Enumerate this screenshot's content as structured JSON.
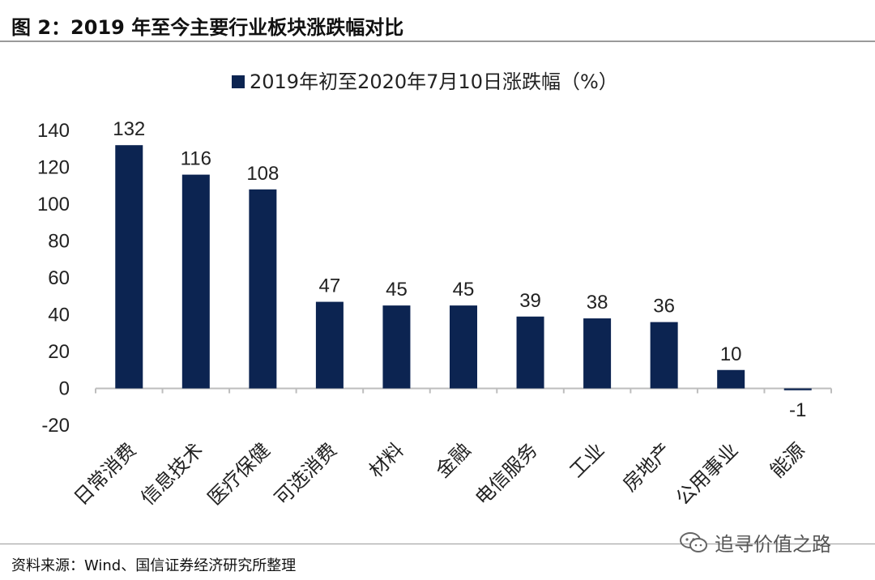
{
  "figure": {
    "title": "图 2：2019 年至今主要行业板块涨跌幅对比",
    "source": "资料来源：Wind、国信证券经济研究所整理",
    "watermark": "追寻价值之路",
    "watermark_icon": "wechat-icon"
  },
  "colors": {
    "bar": "#0c2451",
    "axis": "#bdbdbd",
    "text": "#222222"
  },
  "chart_data": {
    "type": "bar",
    "categories": [
      "日常消费",
      "信息技术",
      "医疗保健",
      "可选消费",
      "材料",
      "金融",
      "电信服务",
      "工业",
      "房地产",
      "公用事业",
      "能源"
    ],
    "series": [
      {
        "name": "2019年初至2020年7月10日涨跌幅（%）",
        "values": [
          132,
          116,
          108,
          47,
          45,
          45,
          39,
          38,
          36,
          10,
          -1
        ]
      }
    ],
    "data_labels": [
      "132",
      "116",
      "108",
      "47",
      "45",
      "45",
      "39",
      "38",
      "36",
      "10",
      "-1"
    ],
    "ylim": [
      -20,
      140
    ],
    "yticks": [
      -20,
      0,
      20,
      40,
      60,
      80,
      100,
      120,
      140
    ],
    "legend_position": "top-center",
    "grid": false
  }
}
